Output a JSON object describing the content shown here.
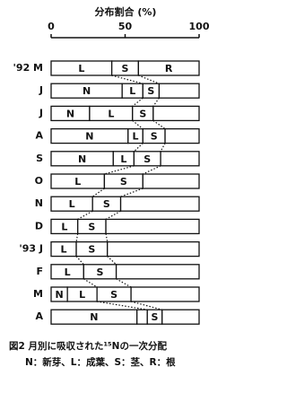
{
  "chart_data": {
    "type": "stacked-bar",
    "title": "分布割合 (%)",
    "categories": [
      "'92 M",
      "J",
      "J",
      "A",
      "S",
      "O",
      "N",
      "D",
      "'93 J",
      "F",
      "M",
      "A"
    ],
    "series": [
      {
        "name": "N",
        "color": "#ffffff",
        "values": [
          0,
          48,
          26,
          52,
          42,
          0,
          0,
          0,
          0,
          0,
          11,
          58
        ]
      },
      {
        "name": "L",
        "color": "#ffffff",
        "values": [
          41,
          14,
          29,
          10,
          14,
          36,
          28,
          18,
          17,
          22,
          20,
          7
        ]
      },
      {
        "name": "S",
        "color": "#ffffff",
        "values": [
          18,
          11,
          14,
          15,
          18,
          26,
          19,
          19,
          21,
          22,
          23,
          10
        ]
      },
      {
        "name": "R",
        "color": "#ffffff",
        "values": [
          41,
          27,
          31,
          23,
          26,
          38,
          53,
          63,
          62,
          56,
          46,
          25
        ]
      }
    ],
    "xlim": [
      0,
      100
    ],
    "xticks": [
      0,
      50,
      100
    ],
    "caption": [
      "図2 月別に吸収された¹⁵Nの一次分配",
      "N：新芽、L：成葉、S：茎、R：根"
    ]
  }
}
